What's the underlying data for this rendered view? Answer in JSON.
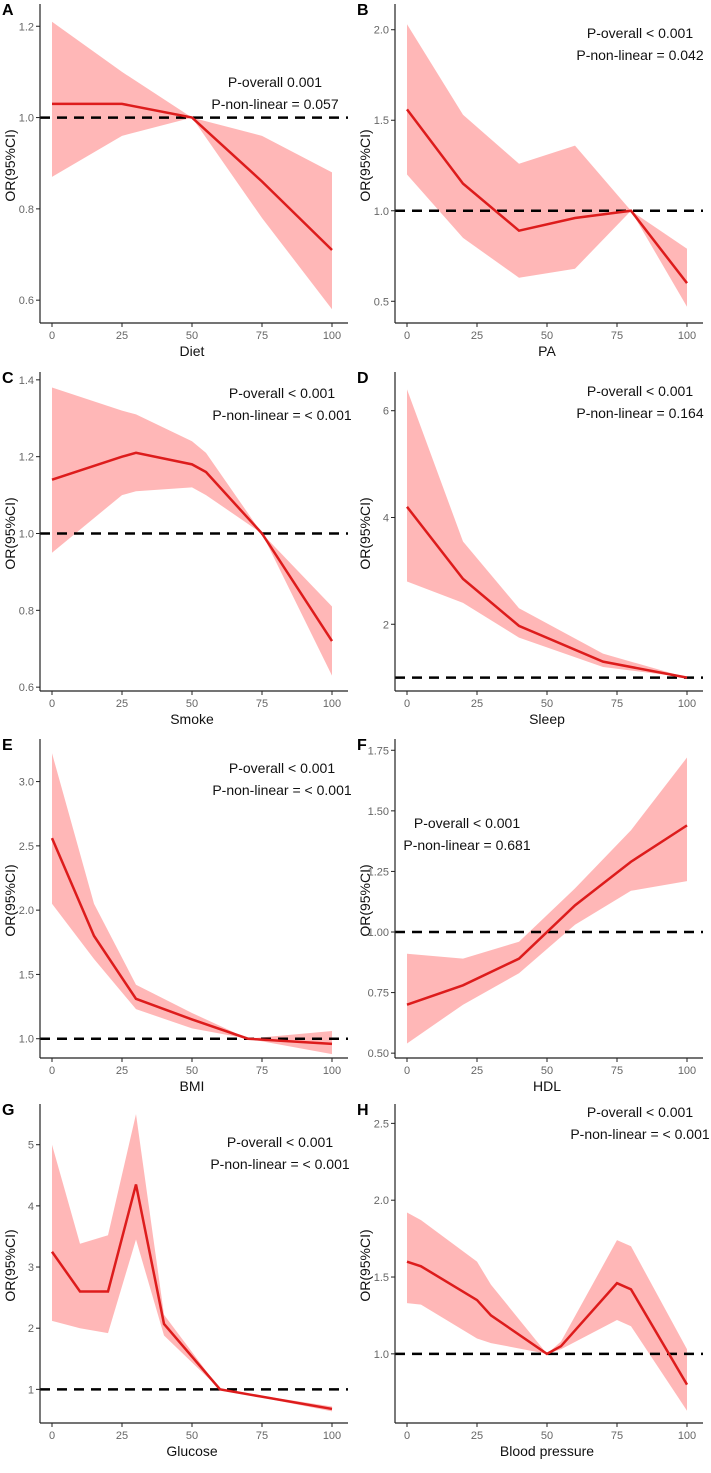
{
  "colors": {
    "line": "#dd1c1c",
    "band": "#ffb3b3",
    "reference": "#000000",
    "axis": "#222222",
    "tick_label": "#666666"
  },
  "chart_data": [
    {
      "panel": "A",
      "type": "line",
      "xlabel": "Diet",
      "ylabel": "OR(95%CI)",
      "annotation": [
        "P-overall 0.001",
        "P-non-linear = 0.057"
      ],
      "xlim": [
        0,
        100
      ],
      "xticks": [
        0,
        25,
        50,
        75,
        100
      ],
      "ylim": [
        0.55,
        1.24
      ],
      "yticks": [
        "0.6",
        "0.8",
        "1.0",
        "1.2"
      ],
      "reference_y": 1.0,
      "x": [
        0,
        25,
        50,
        75,
        100
      ],
      "y": [
        1.03,
        1.03,
        1.0,
        0.86,
        0.71
      ],
      "lower": [
        0.87,
        0.96,
        1.0,
        0.78,
        0.58
      ],
      "upper": [
        1.21,
        1.1,
        1.0,
        0.96,
        0.88
      ]
    },
    {
      "panel": "B",
      "type": "line",
      "xlabel": "PA",
      "ylabel": "OR(95%CI)",
      "annotation": [
        "P-overall < 0.001",
        "P-non-linear = 0.042"
      ],
      "xlim": [
        0,
        100
      ],
      "xticks": [
        0,
        25,
        50,
        75,
        100
      ],
      "ylim": [
        0.38,
        2.12
      ],
      "yticks": [
        "0.5",
        "1.0",
        "1.5",
        "2.0"
      ],
      "reference_y": 1.0,
      "x": [
        0,
        20,
        40,
        60,
        80,
        100
      ],
      "y": [
        1.56,
        1.15,
        0.89,
        0.96,
        1.0,
        0.6
      ],
      "lower": [
        1.2,
        0.85,
        0.63,
        0.68,
        1.0,
        0.47
      ],
      "upper": [
        2.03,
        1.53,
        1.26,
        1.36,
        1.0,
        0.79
      ]
    },
    {
      "panel": "C",
      "type": "line",
      "xlabel": "Smoke",
      "ylabel": "OR(95%CI)",
      "annotation": [
        "P-overall < 0.001",
        "P-non-linear = < 0.001"
      ],
      "xlim": [
        0,
        100
      ],
      "xticks": [
        0,
        25,
        50,
        75,
        100
      ],
      "ylim": [
        0.59,
        1.41
      ],
      "yticks": [
        "0.6",
        "0.8",
        "1.0",
        "1.2",
        "1.4"
      ],
      "reference_y": 1.0,
      "x": [
        0,
        25,
        30,
        50,
        55,
        75,
        100
      ],
      "y": [
        1.14,
        1.2,
        1.21,
        1.18,
        1.16,
        1.0,
        0.72
      ],
      "lower": [
        0.95,
        1.1,
        1.11,
        1.12,
        1.1,
        1.0,
        0.63
      ],
      "upper": [
        1.38,
        1.32,
        1.31,
        1.24,
        1.21,
        1.0,
        0.81
      ]
    },
    {
      "panel": "D",
      "type": "line",
      "xlabel": "Sleep",
      "ylabel": "OR(95%CI)",
      "annotation": [
        "P-overall < 0.001",
        "P-non-linear = 0.164"
      ],
      "xlim": [
        0,
        100
      ],
      "xticks": [
        0,
        25,
        50,
        75,
        100
      ],
      "ylim": [
        0.75,
        6.65
      ],
      "yticks": [
        "2",
        "4",
        "6"
      ],
      "reference_y": 1.0,
      "x": [
        0,
        20,
        40,
        70,
        100
      ],
      "y": [
        4.2,
        2.85,
        1.97,
        1.3,
        1.0
      ],
      "lower": [
        2.8,
        2.4,
        1.75,
        1.2,
        1.0
      ],
      "upper": [
        6.4,
        3.55,
        2.3,
        1.45,
        1.0
      ]
    },
    {
      "panel": "E",
      "type": "line",
      "xlabel": "BMI",
      "ylabel": "OR(95%CI)",
      "annotation": [
        "P-overall < 0.001",
        "P-non-linear = < 0.001"
      ],
      "xlim": [
        0,
        100
      ],
      "xticks": [
        0,
        25,
        50,
        75,
        100
      ],
      "ylim": [
        0.85,
        3.3
      ],
      "yticks": [
        "1.0",
        "1.5",
        "2.0",
        "2.5",
        "3.0"
      ],
      "reference_y": 1.0,
      "x": [
        0,
        15,
        30,
        50,
        70,
        100
      ],
      "y": [
        2.56,
        1.8,
        1.31,
        1.15,
        1.0,
        0.96
      ],
      "lower": [
        2.05,
        1.62,
        1.23,
        1.08,
        1.0,
        0.88
      ],
      "upper": [
        3.22,
        2.05,
        1.42,
        1.2,
        1.0,
        1.06
      ]
    },
    {
      "panel": "F",
      "type": "line",
      "xlabel": "HDL",
      "ylabel": "OR(95%CI)",
      "annotation": [
        "P-overall < 0.001",
        "P-non-linear = 0.681"
      ],
      "xlim": [
        0,
        100
      ],
      "xticks": [
        0,
        25,
        50,
        75,
        100
      ],
      "ylim": [
        0.48,
        1.78
      ],
      "yticks": [
        "0.50",
        "0.75",
        "1.00",
        "1.25",
        "1.50",
        "1.75"
      ],
      "reference_y": 1.0,
      "x": [
        0,
        20,
        40,
        60,
        80,
        100
      ],
      "y": [
        0.7,
        0.78,
        0.89,
        1.11,
        1.29,
        1.44
      ],
      "lower": [
        0.54,
        0.7,
        0.83,
        1.03,
        1.17,
        1.21
      ],
      "upper": [
        0.91,
        0.89,
        0.96,
        1.18,
        1.42,
        1.72
      ]
    },
    {
      "panel": "G",
      "type": "line",
      "xlabel": "Glucose",
      "ylabel": "OR(95%CI)",
      "annotation": [
        "P-overall < 0.001",
        "P-non-linear = < 0.001"
      ],
      "xlim": [
        0,
        100
      ],
      "xticks": [
        0,
        25,
        50,
        75,
        100
      ],
      "ylim": [
        0.45,
        5.6
      ],
      "yticks": [
        "1",
        "2",
        "3",
        "4",
        "5"
      ],
      "reference_y": 1.0,
      "x": [
        0,
        10,
        20,
        30,
        40,
        60,
        100
      ],
      "y": [
        3.25,
        2.6,
        2.6,
        4.35,
        2.07,
        1.0,
        0.68
      ],
      "lower": [
        2.12,
        2.0,
        1.92,
        3.45,
        1.88,
        1.0,
        0.64
      ],
      "upper": [
        5.0,
        3.38,
        3.52,
        5.5,
        2.22,
        1.0,
        0.72
      ]
    },
    {
      "panel": "H",
      "type": "line",
      "xlabel": "Blood pressure",
      "ylabel": "OR(95%CI)",
      "annotation": [
        "P-overall < 0.001",
        "P-non-linear = < 0.001"
      ],
      "xlim": [
        0,
        100
      ],
      "xticks": [
        0,
        25,
        50,
        75,
        100
      ],
      "ylim": [
        0.55,
        2.6
      ],
      "yticks": [
        "1.0",
        "1.5",
        "2.0",
        "2.5"
      ],
      "reference_y": 1.0,
      "x": [
        0,
        5,
        25,
        30,
        50,
        55,
        75,
        80,
        100
      ],
      "y": [
        1.6,
        1.57,
        1.35,
        1.25,
        1.0,
        1.05,
        1.46,
        1.42,
        0.8
      ],
      "lower": [
        1.33,
        1.32,
        1.1,
        1.07,
        1.0,
        1.03,
        1.22,
        1.18,
        0.63
      ],
      "upper": [
        1.92,
        1.87,
        1.6,
        1.45,
        1.0,
        1.08,
        1.74,
        1.7,
        1.03
      ]
    }
  ]
}
